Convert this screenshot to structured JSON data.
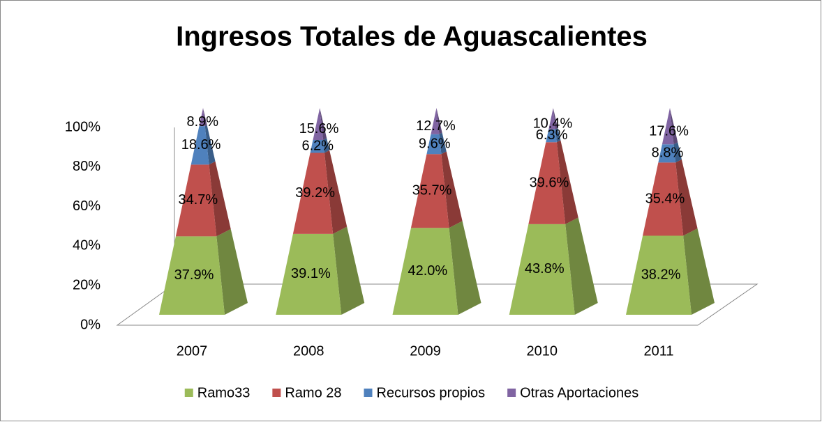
{
  "chart_data": {
    "type": "pyramid",
    "title": "Ingresos Totales de Aguascalientes",
    "categories": [
      "2007",
      "2008",
      "2009",
      "2010",
      "2011"
    ],
    "series": [
      {
        "name": "Ramo33",
        "color": "#9bbb59",
        "values": [
          37.9,
          39.1,
          42.0,
          43.8,
          38.2
        ],
        "value_labels": [
          "37.9%",
          "39.1%",
          "42.0%",
          "43.8%",
          "38.2%"
        ]
      },
      {
        "name": "Ramo 28",
        "color": "#c0504d",
        "values": [
          34.7,
          39.2,
          35.7,
          39.6,
          35.4
        ],
        "value_labels": [
          "34.7%",
          "39.2%",
          "35.7%",
          "39.6%",
          "35.4%"
        ]
      },
      {
        "name": "Recursos propios",
        "color": "#4f81bd",
        "values": [
          18.6,
          6.2,
          9.6,
          6.3,
          8.8
        ],
        "value_labels": [
          "18.6%",
          "6.2%",
          "9.6%",
          "6.3%",
          "8.8%"
        ]
      },
      {
        "name": "Otras Aportaciones",
        "color": "#8064a2",
        "values": [
          8.9,
          15.6,
          12.7,
          10.4,
          17.6
        ],
        "value_labels": [
          "8.9%",
          "15.6%",
          "12.7%",
          "10.4%",
          "17.6%"
        ]
      }
    ],
    "ylim": [
      0,
      100
    ],
    "yticks": [
      {
        "value": 0,
        "label": "0%"
      },
      {
        "value": 20,
        "label": "20%"
      },
      {
        "value": 40,
        "label": "40%"
      },
      {
        "value": 60,
        "label": "60%"
      },
      {
        "value": 80,
        "label": "80%"
      },
      {
        "value": 100,
        "label": "100%"
      }
    ],
    "legend": "bottom"
  }
}
